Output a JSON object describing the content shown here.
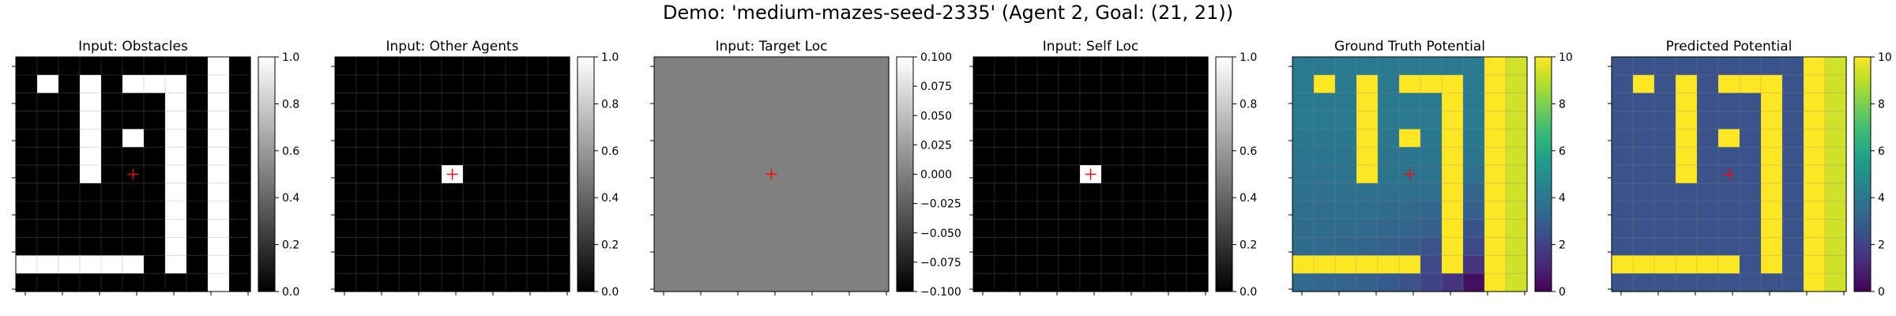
{
  "suptitle": "Demo: 'medium-mazes-seed-2335' (Agent 2, Goal: (21, 21))",
  "marker": {
    "row": 6,
    "col": 5,
    "color": "#ff0000"
  },
  "chart_data": [
    {
      "type": "heatmap",
      "title": "Input: Obstacles",
      "cmap": "gray",
      "vmin": 0,
      "vmax": 1,
      "colorbar_ticks": [
        "0.0",
        "0.2",
        "0.4",
        "0.6",
        "0.8",
        "1.0"
      ],
      "grid": [
        [
          0,
          0,
          0,
          0,
          0,
          0,
          0,
          0,
          0,
          1,
          0
        ],
        [
          0,
          1,
          0,
          1,
          0,
          1,
          1,
          1,
          0,
          1,
          0
        ],
        [
          0,
          0,
          0,
          1,
          0,
          0,
          0,
          1,
          0,
          1,
          0
        ],
        [
          0,
          0,
          0,
          1,
          0,
          0,
          0,
          1,
          0,
          1,
          0
        ],
        [
          0,
          0,
          0,
          1,
          0,
          1,
          0,
          1,
          0,
          1,
          0
        ],
        [
          0,
          0,
          0,
          1,
          0,
          0,
          0,
          1,
          0,
          1,
          0
        ],
        [
          0,
          0,
          0,
          1,
          0,
          0,
          0,
          1,
          0,
          1,
          0
        ],
        [
          0,
          0,
          0,
          0,
          0,
          0,
          0,
          1,
          0,
          1,
          0
        ],
        [
          0,
          0,
          0,
          0,
          0,
          0,
          0,
          1,
          0,
          1,
          0
        ],
        [
          0,
          0,
          0,
          0,
          0,
          0,
          0,
          1,
          0,
          1,
          0
        ],
        [
          0,
          0,
          0,
          0,
          0,
          0,
          0,
          1,
          0,
          1,
          0
        ],
        [
          1,
          1,
          1,
          1,
          1,
          1,
          0,
          1,
          0,
          1,
          0
        ],
        [
          0,
          0,
          0,
          0,
          0,
          0,
          0,
          0,
          0,
          1,
          0
        ]
      ]
    },
    {
      "type": "heatmap",
      "title": "Input: Other Agents",
      "cmap": "gray",
      "vmin": 0,
      "vmax": 1,
      "colorbar_ticks": [
        "0.0",
        "0.2",
        "0.4",
        "0.6",
        "0.8",
        "1.0"
      ],
      "grid": [
        [
          0,
          0,
          0,
          0,
          0,
          0,
          0,
          0,
          0,
          0,
          0
        ],
        [
          0,
          0,
          0,
          0,
          0,
          0,
          0,
          0,
          0,
          0,
          0
        ],
        [
          0,
          0,
          0,
          0,
          0,
          0,
          0,
          0,
          0,
          0,
          0
        ],
        [
          0,
          0,
          0,
          0,
          0,
          0,
          0,
          0,
          0,
          0,
          0
        ],
        [
          0,
          0,
          0,
          0,
          0,
          0,
          0,
          0,
          0,
          0,
          0
        ],
        [
          0,
          0,
          0,
          0,
          0,
          0,
          0,
          0,
          0,
          0,
          0
        ],
        [
          0,
          0,
          0,
          0,
          0,
          1,
          0,
          0,
          0,
          0,
          0
        ],
        [
          0,
          0,
          0,
          0,
          0,
          0,
          0,
          0,
          0,
          0,
          0
        ],
        [
          0,
          0,
          0,
          0,
          0,
          0,
          0,
          0,
          0,
          0,
          0
        ],
        [
          0,
          0,
          0,
          0,
          0,
          0,
          0,
          0,
          0,
          0,
          0
        ],
        [
          0,
          0,
          0,
          0,
          0,
          0,
          0,
          0,
          0,
          0,
          0
        ],
        [
          0,
          0,
          0,
          0,
          0,
          0,
          0,
          0,
          0,
          0,
          0
        ],
        [
          0,
          0,
          0,
          0,
          0,
          0,
          0,
          0,
          0,
          0,
          0
        ]
      ]
    },
    {
      "type": "heatmap",
      "title": "Input: Target Loc",
      "cmap": "gray",
      "vmin": -0.1,
      "vmax": 0.1,
      "colorbar_ticks": [
        "0.100",
        "0.075",
        "0.050",
        "0.025",
        "0.000",
        "−0.025",
        "−0.050",
        "−0.075",
        "−0.100"
      ],
      "grid": [
        [
          0,
          0,
          0,
          0,
          0,
          0,
          0,
          0,
          0,
          0,
          0
        ],
        [
          0,
          0,
          0,
          0,
          0,
          0,
          0,
          0,
          0,
          0,
          0
        ],
        [
          0,
          0,
          0,
          0,
          0,
          0,
          0,
          0,
          0,
          0,
          0
        ],
        [
          0,
          0,
          0,
          0,
          0,
          0,
          0,
          0,
          0,
          0,
          0
        ],
        [
          0,
          0,
          0,
          0,
          0,
          0,
          0,
          0,
          0,
          0,
          0
        ],
        [
          0,
          0,
          0,
          0,
          0,
          0,
          0,
          0,
          0,
          0,
          0
        ],
        [
          0,
          0,
          0,
          0,
          0,
          0,
          0,
          0,
          0,
          0,
          0
        ],
        [
          0,
          0,
          0,
          0,
          0,
          0,
          0,
          0,
          0,
          0,
          0
        ],
        [
          0,
          0,
          0,
          0,
          0,
          0,
          0,
          0,
          0,
          0,
          0
        ],
        [
          0,
          0,
          0,
          0,
          0,
          0,
          0,
          0,
          0,
          0,
          0
        ],
        [
          0,
          0,
          0,
          0,
          0,
          0,
          0,
          0,
          0,
          0,
          0
        ],
        [
          0,
          0,
          0,
          0,
          0,
          0,
          0,
          0,
          0,
          0,
          0
        ],
        [
          0,
          0,
          0,
          0,
          0,
          0,
          0,
          0,
          0,
          0,
          0
        ]
      ]
    },
    {
      "type": "heatmap",
      "title": "Input: Self Loc",
      "cmap": "gray",
      "vmin": 0,
      "vmax": 1,
      "colorbar_ticks": [
        "0.0",
        "0.2",
        "0.4",
        "0.6",
        "0.8",
        "1.0"
      ],
      "grid": [
        [
          0,
          0,
          0,
          0,
          0,
          0,
          0,
          0,
          0,
          0,
          0
        ],
        [
          0,
          0,
          0,
          0,
          0,
          0,
          0,
          0,
          0,
          0,
          0
        ],
        [
          0,
          0,
          0,
          0,
          0,
          0,
          0,
          0,
          0,
          0,
          0
        ],
        [
          0,
          0,
          0,
          0,
          0,
          0,
          0,
          0,
          0,
          0,
          0
        ],
        [
          0,
          0,
          0,
          0,
          0,
          0,
          0,
          0,
          0,
          0,
          0
        ],
        [
          0,
          0,
          0,
          0,
          0,
          0,
          0,
          0,
          0,
          0,
          0
        ],
        [
          0,
          0,
          0,
          0,
          0,
          1,
          0,
          0,
          0,
          0,
          0
        ],
        [
          0,
          0,
          0,
          0,
          0,
          0,
          0,
          0,
          0,
          0,
          0
        ],
        [
          0,
          0,
          0,
          0,
          0,
          0,
          0,
          0,
          0,
          0,
          0
        ],
        [
          0,
          0,
          0,
          0,
          0,
          0,
          0,
          0,
          0,
          0,
          0
        ],
        [
          0,
          0,
          0,
          0,
          0,
          0,
          0,
          0,
          0,
          0,
          0
        ],
        [
          0,
          0,
          0,
          0,
          0,
          0,
          0,
          0,
          0,
          0,
          0
        ],
        [
          0,
          0,
          0,
          0,
          0,
          0,
          0,
          0,
          0,
          0,
          0
        ]
      ]
    },
    {
      "type": "heatmap",
      "title": "Ground Truth Potential",
      "cmap": "viridis",
      "vmin": 0,
      "vmax": 10,
      "colorbar_ticks": [
        "0",
        "2",
        "4",
        "6",
        "8",
        "10"
      ],
      "grid": [
        [
          4.1,
          4.1,
          4.1,
          4.1,
          4.1,
          4.1,
          4.1,
          4.1,
          4.1,
          10,
          9.3
        ],
        [
          4.1,
          10,
          4.1,
          10,
          4.1,
          10,
          10,
          10,
          4.1,
          10,
          9.3
        ],
        [
          4.1,
          4.1,
          4.1,
          10,
          4.1,
          4.1,
          4.1,
          10,
          4.1,
          10,
          9.3
        ],
        [
          4.1,
          4.1,
          4.1,
          10,
          4.1,
          4.1,
          4.1,
          10,
          4.1,
          10,
          9.3
        ],
        [
          4.0,
          4.0,
          4.0,
          10,
          4.0,
          10,
          4.0,
          10,
          4.0,
          10,
          9.3
        ],
        [
          3.9,
          3.9,
          3.9,
          10,
          3.9,
          3.9,
          3.9,
          10,
          3.9,
          10,
          9.3
        ],
        [
          3.8,
          3.8,
          3.8,
          10,
          3.8,
          3.8,
          3.8,
          10,
          3.6,
          10,
          9.3
        ],
        [
          3.7,
          3.7,
          3.7,
          3.7,
          3.7,
          3.6,
          3.6,
          10,
          3.3,
          10,
          9.3
        ],
        [
          3.6,
          3.6,
          3.6,
          3.6,
          3.5,
          3.4,
          3.3,
          10,
          3.0,
          10,
          9.3
        ],
        [
          3.5,
          3.5,
          3.5,
          3.4,
          3.3,
          3.2,
          3.0,
          10,
          2.6,
          10,
          9.3
        ],
        [
          3.5,
          3.4,
          3.3,
          3.2,
          3.1,
          2.9,
          2.6,
          10,
          2.2,
          10,
          9.3
        ],
        [
          10,
          10,
          10,
          10,
          10,
          10,
          2.3,
          10,
          1.5,
          10,
          9.3
        ],
        [
          3.4,
          3.3,
          3.2,
          3.0,
          2.8,
          2.5,
          2.0,
          1.5,
          0.4,
          10,
          9.3
        ]
      ]
    },
    {
      "type": "heatmap",
      "title": "Predicted Potential",
      "cmap": "viridis",
      "vmin": 0,
      "vmax": 10,
      "colorbar_ticks": [
        "0",
        "2",
        "4",
        "6",
        "8",
        "10"
      ],
      "grid": [
        [
          2.6,
          2.6,
          2.6,
          2.6,
          2.6,
          2.6,
          2.6,
          2.6,
          2.6,
          10,
          9.3
        ],
        [
          2.6,
          10,
          2.6,
          10,
          2.6,
          10,
          10,
          10,
          2.6,
          10,
          9.3
        ],
        [
          2.6,
          2.6,
          2.6,
          10,
          2.6,
          2.6,
          2.6,
          10,
          2.6,
          10,
          9.3
        ],
        [
          2.6,
          2.6,
          2.6,
          10,
          2.6,
          2.6,
          2.6,
          10,
          2.6,
          10,
          9.3
        ],
        [
          2.6,
          2.6,
          2.6,
          10,
          2.6,
          10,
          2.6,
          10,
          2.6,
          10,
          9.3
        ],
        [
          2.6,
          2.6,
          2.6,
          10,
          2.6,
          2.6,
          2.6,
          10,
          2.6,
          10,
          9.3
        ],
        [
          2.6,
          2.6,
          2.6,
          10,
          2.6,
          2.6,
          2.6,
          10,
          2.6,
          10,
          9.3
        ],
        [
          2.6,
          2.6,
          2.6,
          2.6,
          2.6,
          2.6,
          2.6,
          10,
          2.6,
          10,
          9.3
        ],
        [
          2.6,
          2.6,
          2.6,
          2.6,
          2.6,
          2.6,
          2.6,
          10,
          2.6,
          10,
          9.3
        ],
        [
          2.6,
          2.6,
          2.6,
          2.6,
          2.6,
          2.6,
          2.6,
          10,
          2.6,
          10,
          9.3
        ],
        [
          2.6,
          2.6,
          2.6,
          2.6,
          2.6,
          2.6,
          2.6,
          10,
          2.6,
          10,
          9.3
        ],
        [
          10,
          10,
          10,
          10,
          10,
          10,
          2.6,
          10,
          2.6,
          10,
          9.3
        ],
        [
          2.6,
          2.6,
          2.6,
          2.6,
          2.6,
          2.6,
          2.6,
          2.6,
          2.6,
          10,
          9.3
        ]
      ]
    }
  ]
}
